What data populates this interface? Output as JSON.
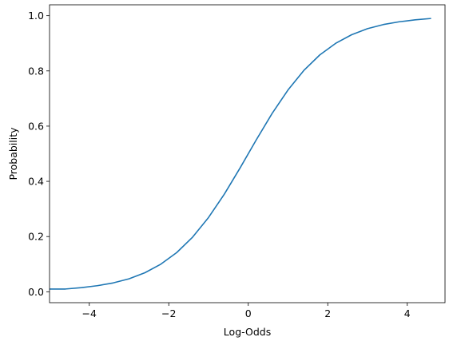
{
  "chart_data": {
    "type": "line",
    "title": "",
    "xlabel": "Log-Odds",
    "ylabel": "Probability",
    "xlim": [
      -5.0,
      4.95
    ],
    "ylim": [
      -0.0395,
      1.0395
    ],
    "xticks": [
      -4,
      -2,
      0,
      2,
      4
    ],
    "xtick_labels": [
      "−4",
      "−2",
      "0",
      "2",
      "4"
    ],
    "yticks": [
      0.0,
      0.2,
      0.4,
      0.6,
      0.8,
      1.0
    ],
    "ytick_labels": [
      "0.0",
      "0.2",
      "0.4",
      "0.6",
      "0.8",
      "1.0"
    ],
    "grid": false,
    "line_color": "#1f77b4",
    "series": [
      {
        "x": [
          -5.0,
          -4.6,
          -4.2,
          -3.8,
          -3.4,
          -3.0,
          -2.6,
          -2.2,
          -1.8,
          -1.4,
          -1.0,
          -0.6,
          -0.2,
          0.2,
          0.6,
          1.0,
          1.4,
          1.8,
          2.2,
          2.6,
          3.0,
          3.4,
          3.8,
          4.2,
          4.6
        ],
        "y": [
          0.01,
          0.01,
          0.015,
          0.022,
          0.032,
          0.047,
          0.069,
          0.1,
          0.142,
          0.198,
          0.269,
          0.354,
          0.45,
          0.55,
          0.646,
          0.731,
          0.802,
          0.858,
          0.9,
          0.931,
          0.953,
          0.968,
          0.978,
          0.985,
          0.99
        ]
      }
    ]
  }
}
